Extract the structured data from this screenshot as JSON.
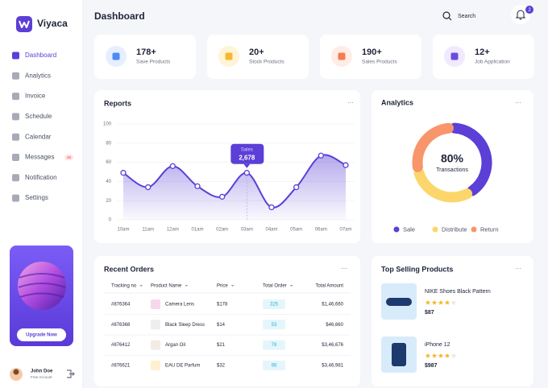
{
  "brand": "Viyaca",
  "nav": [
    {
      "label": "Dashboard"
    },
    {
      "label": "Analytics"
    },
    {
      "label": "Invoice"
    },
    {
      "label": "Schedule"
    },
    {
      "label": "Calendar"
    },
    {
      "label": "Messages",
      "badge": 48
    },
    {
      "label": "Notification"
    },
    {
      "label": "Settings"
    }
  ],
  "promo": {
    "button": "Upgrade Now"
  },
  "user": {
    "name": "John Doe",
    "plan": "Free Account"
  },
  "header": {
    "title": "Dashboard",
    "search": "Search",
    "notifications": 2
  },
  "stats": [
    {
      "value": "178+",
      "label": "Save Products"
    },
    {
      "value": "20+",
      "label": "Stock Products"
    },
    {
      "value": "190+",
      "label": "Sales Products"
    },
    {
      "value": "12+",
      "label": "Job Application"
    }
  ],
  "reports": {
    "type": "line",
    "title": "Reports",
    "color": "#5b3fd6",
    "categories": [
      "10am",
      "11am",
      "12am",
      "01am",
      "02am",
      "03am",
      "04am",
      "05am",
      "06am",
      "07am"
    ],
    "values": [
      49,
      34,
      56,
      35,
      24,
      49,
      13,
      34,
      67,
      57
    ],
    "ylim": [
      0,
      100
    ],
    "yticks": [
      0,
      20,
      40,
      60,
      80,
      100
    ],
    "tooltip": {
      "label": "Sales",
      "value": "2,678"
    }
  },
  "analytics": {
    "type": "donut",
    "title": "Analytics",
    "center_value": "80%",
    "center_label": "Transactions",
    "series": [
      {
        "name": "Sale",
        "color": "#5b3fd6",
        "value": 40
      },
      {
        "name": "Distribute",
        "color": "#fcd66b",
        "value": 28
      },
      {
        "name": "Return",
        "color": "#f8956a",
        "value": 26
      }
    ]
  },
  "orders": {
    "title": "Recent Orders",
    "columns": [
      "Tracking no",
      "Product Name",
      "Price",
      "Total Order",
      "Total Amount"
    ],
    "rows": [
      [
        "#876364",
        "Camera Lens",
        "$178",
        325,
        "$1,46,660"
      ],
      [
        "#876368",
        "Black Sleep Dress",
        "$14",
        53,
        "$46,660"
      ],
      [
        "#876412",
        "Argan Oil",
        "$21",
        78,
        "$3,46,676"
      ],
      [
        "#876621",
        "EAU DE Parfum",
        "$32",
        98,
        "$3,46,981"
      ]
    ]
  },
  "top_selling": {
    "title": "Top Selling Products",
    "items": [
      {
        "name": "NIKE Shoes Black Pattern",
        "rating": 4,
        "price": "$87"
      },
      {
        "name": "iPhone 12",
        "rating": 4,
        "price": "$987"
      }
    ]
  }
}
